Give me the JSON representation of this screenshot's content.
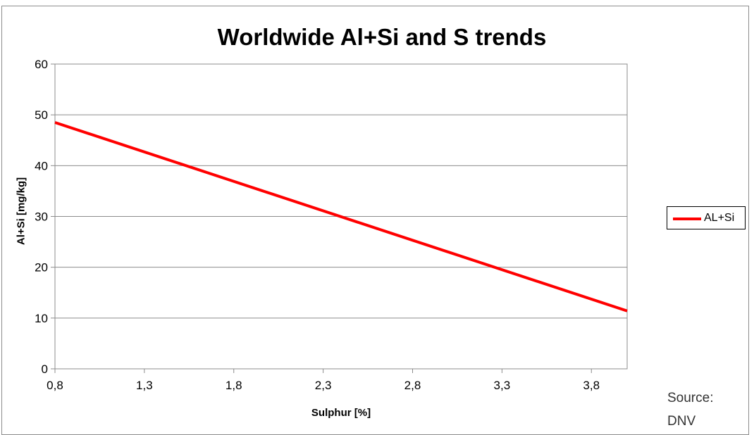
{
  "chart_data": {
    "type": "line",
    "title": "Worldwide Al+Si and S trends",
    "xlabel": "Sulphur [%]",
    "ylabel": "Al+Si [mg/kg]",
    "xlim": [
      0.8,
      4.0
    ],
    "ylim": [
      0,
      60
    ],
    "x_ticks": [
      "0,8",
      "1,3",
      "1,8",
      "2,3",
      "2,8",
      "3,3",
      "3,8"
    ],
    "y_ticks": [
      "0",
      "10",
      "20",
      "30",
      "40",
      "50",
      "60"
    ],
    "grid": true,
    "legend_position": "right",
    "series": [
      {
        "name": "AL+Si",
        "color": "#ff0000",
        "x": [
          0.8,
          4.0
        ],
        "y": [
          48.5,
          11.4
        ]
      }
    ]
  },
  "source": {
    "line1": "Source:",
    "line2": "DNV"
  }
}
